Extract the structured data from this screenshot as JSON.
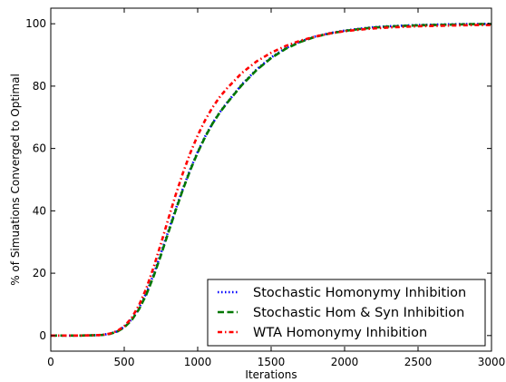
{
  "chart_data": {
    "type": "line",
    "title": "",
    "xlabel": "Iterations",
    "ylabel": "% of Simuations Converged to Optimal",
    "xlim": [
      0,
      3000
    ],
    "ylim": [
      -5,
      105
    ],
    "xticks": [
      0,
      500,
      1000,
      1500,
      2000,
      2500,
      3000
    ],
    "yticks": [
      0,
      20,
      40,
      60,
      80,
      100
    ],
    "x_tick_labels": [
      "0",
      "500",
      "1000",
      "1500",
      "2000",
      "2500",
      "3000"
    ],
    "y_tick_labels": [
      "0",
      "20",
      "40",
      "60",
      "80",
      "100"
    ],
    "grid": false,
    "legend_position": "bottom-right",
    "x": [
      0,
      100,
      200,
      300,
      350,
      400,
      450,
      500,
      550,
      600,
      650,
      700,
      750,
      800,
      850,
      900,
      950,
      1000,
      1050,
      1100,
      1150,
      1200,
      1300,
      1400,
      1500,
      1600,
      1700,
      1800,
      1900,
      2000,
      2100,
      2200,
      2300,
      2400,
      2500,
      2600,
      2700,
      2800,
      2900,
      3000
    ],
    "series": [
      {
        "name": "Stochastic Homonymy Inhibition",
        "color": "#0000ff",
        "style": "dotted",
        "values": [
          0,
          0,
          0,
          0.1,
          0.2,
          0.6,
          1.3,
          2.8,
          5.2,
          8.8,
          13.6,
          19.6,
          26.4,
          33.5,
          40.5,
          47.2,
          53.4,
          58.9,
          63.8,
          68.0,
          71.6,
          74.7,
          80.5,
          85.3,
          89.2,
          92.2,
          94.3,
          95.9,
          97.0,
          97.8,
          98.4,
          98.9,
          99.2,
          99.4,
          99.6,
          99.7,
          99.8,
          99.9,
          99.9,
          100
        ]
      },
      {
        "name": "Stochastic Hom & Syn Inhibition",
        "color": "#007700",
        "style": "dashed",
        "values": [
          0,
          0,
          0,
          0.1,
          0.2,
          0.5,
          1.2,
          2.6,
          4.9,
          8.4,
          13.1,
          19.0,
          25.8,
          33.0,
          40.1,
          46.9,
          53.1,
          58.7,
          63.6,
          67.9,
          71.5,
          74.6,
          80.3,
          85.1,
          89.0,
          92.0,
          94.2,
          95.8,
          96.9,
          97.7,
          98.3,
          98.8,
          99.1,
          99.3,
          99.5,
          99.6,
          99.7,
          99.8,
          99.9,
          99.9
        ]
      },
      {
        "name": "WTA Homonymy Inhibition",
        "color": "#ff0000",
        "style": "dash-dot",
        "values": [
          0,
          0,
          0,
          0.1,
          0.2,
          0.6,
          1.4,
          3.0,
          5.6,
          9.7,
          15.1,
          21.9,
          29.5,
          37.4,
          45.1,
          52.2,
          58.6,
          64.2,
          69.0,
          73.1,
          76.5,
          79.3,
          84.2,
          87.9,
          90.7,
          92.9,
          94.6,
          95.9,
          96.9,
          97.6,
          98.1,
          98.5,
          98.8,
          99.0,
          99.2,
          99.3,
          99.4,
          99.5,
          99.6,
          99.6
        ]
      }
    ]
  }
}
